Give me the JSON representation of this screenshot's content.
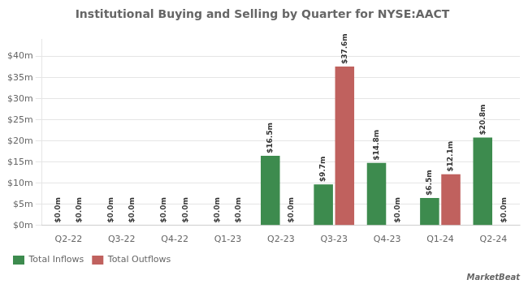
{
  "chart_data": {
    "type": "bar",
    "title": "Institutional Buying and Selling by Quarter for NYSE:AACT",
    "categories": [
      "Q2-22",
      "Q3-22",
      "Q4-22",
      "Q1-23",
      "Q2-23",
      "Q3-23",
      "Q4-23",
      "Q1-24",
      "Q2-24"
    ],
    "series": [
      {
        "name": "Total Inflows",
        "color": "#3d8b4e",
        "values": [
          0.0,
          0.0,
          0.0,
          0.0,
          16.5,
          9.7,
          14.8,
          6.5,
          20.8
        ],
        "value_labels": [
          "$0.0m",
          "$0.0m",
          "$0.0m",
          "$0.0m",
          "$16.5m",
          "$9.7m",
          "$14.8m",
          "$6.5m",
          "$20.8m"
        ]
      },
      {
        "name": "Total Outflows",
        "color": "#c0615e",
        "values": [
          0.0,
          0.0,
          0.0,
          0.0,
          0.0,
          37.6,
          0.0,
          12.1,
          0.0
        ],
        "value_labels": [
          "$0.0m",
          "$0.0m",
          "$0.0m",
          "$0.0m",
          "$0.0m",
          "$37.6m",
          "$0.0m",
          "$12.1m",
          "$0.0m"
        ]
      }
    ],
    "ylim": [
      0,
      44
    ],
    "yticks": [
      {
        "value": 0,
        "label": "$0m"
      },
      {
        "value": 5,
        "label": "$5m"
      },
      {
        "value": 10,
        "label": "$10m"
      },
      {
        "value": 15,
        "label": "$15m"
      },
      {
        "value": 20,
        "label": "$20m"
      },
      {
        "value": 25,
        "label": "$25m"
      },
      {
        "value": 30,
        "label": "$30m"
      },
      {
        "value": 35,
        "label": "$35m"
      },
      {
        "value": 40,
        "label": "$40m"
      }
    ],
    "grid": true,
    "legend": "bottom",
    "data_labels": true,
    "annotations": [
      "MarketBeat"
    ]
  }
}
